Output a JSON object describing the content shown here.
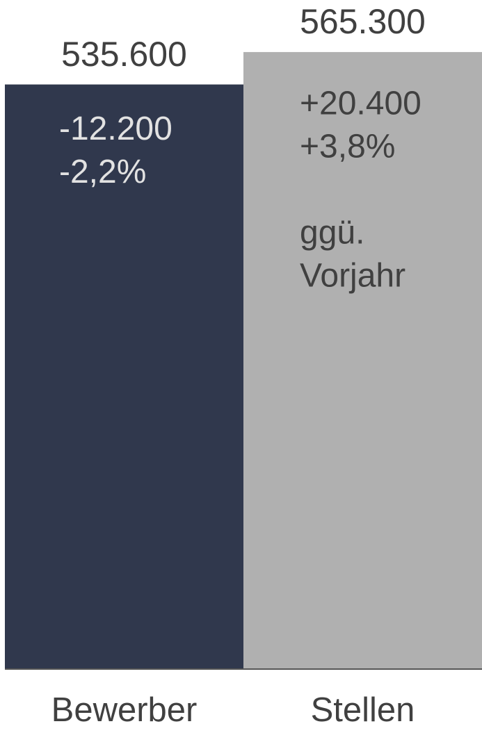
{
  "chart_data": {
    "type": "bar",
    "categories": [
      "Bewerber",
      "Stellen"
    ],
    "values": [
      535600,
      565300
    ],
    "value_labels": [
      "535.600",
      "565.300"
    ],
    "colors": [
      "#30384d",
      "#b0b0b0"
    ],
    "annotations": [
      [
        [
          "-12.200",
          "-2,2%"
        ]
      ],
      [
        [
          "+20.400",
          "+3,8%"
        ],
        [
          "ggü.",
          "Vorjahr"
        ]
      ]
    ],
    "ylim": [
      0,
      600000
    ]
  }
}
